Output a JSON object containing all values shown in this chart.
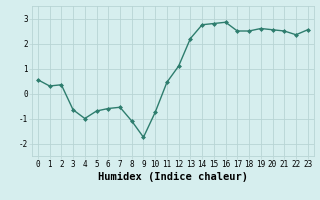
{
  "x": [
    0,
    1,
    2,
    3,
    4,
    5,
    6,
    7,
    8,
    9,
    10,
    11,
    12,
    13,
    14,
    15,
    16,
    17,
    18,
    19,
    20,
    21,
    22,
    23
  ],
  "y": [
    0.55,
    0.3,
    0.35,
    -0.65,
    -1.0,
    -0.7,
    -0.6,
    -0.55,
    -1.1,
    -1.75,
    -0.75,
    0.45,
    1.1,
    2.2,
    2.75,
    2.8,
    2.85,
    2.5,
    2.5,
    2.6,
    2.55,
    2.5,
    2.35,
    2.55
  ],
  "line_color": "#2e7d6e",
  "marker": "D",
  "marker_size": 2.0,
  "line_width": 1.0,
  "bg_color": "#d6eeee",
  "grid_color": "#b8d4d4",
  "xlabel": "Humidex (Indice chaleur)",
  "ylim": [
    -2.5,
    3.5
  ],
  "xlim": [
    -0.5,
    23.5
  ],
  "yticks": [
    -2,
    -1,
    0,
    1,
    2,
    3
  ],
  "xticks": [
    0,
    1,
    2,
    3,
    4,
    5,
    6,
    7,
    8,
    9,
    10,
    11,
    12,
    13,
    14,
    15,
    16,
    17,
    18,
    19,
    20,
    21,
    22,
    23
  ],
  "tick_fontsize": 5.5,
  "xlabel_fontsize": 7.5
}
